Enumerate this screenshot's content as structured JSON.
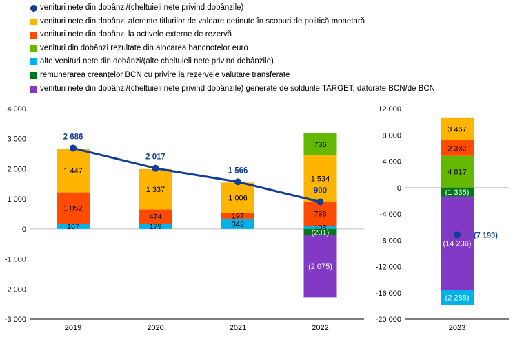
{
  "legend": [
    {
      "label": "venituri nete din dobânzi/(cheltuieli nete privind dobânzile)",
      "color": "#143e96",
      "shape": "dot"
    },
    {
      "label": "venituri nete din dobânzi aferente titlurilor de valoare deținute în scopuri de politică monetară",
      "color": "#ffb400",
      "shape": "square"
    },
    {
      "label": "venituri nete din dobânzi la activele externe de rezervă",
      "color": "#ff4b00",
      "shape": "square"
    },
    {
      "label": "venituri din dobânzi rezultate din alocarea bancnotelor euro",
      "color": "#65b800",
      "shape": "square"
    },
    {
      "label": "alte venituri nete din dobânzi/(alte cheltuieli nete privind dobânzile)",
      "color": "#00b1ea",
      "shape": "square"
    },
    {
      "label": "remunerarea creanțelor BCN cu privire la rezervele valutare transferate",
      "color": "#007816",
      "shape": "square"
    },
    {
      "label": "venituri nete din dobânzi/(cheltuieli nete privind dobânzile) generate de soldurile TARGET, datorate BCN/de BCN",
      "color": "#8139c6",
      "shape": "square"
    }
  ],
  "chart_data": [
    {
      "type": "bar",
      "stacked": true,
      "categories": [
        "2019",
        "2020",
        "2021",
        "2022"
      ],
      "ylim": [
        -3000,
        4000
      ],
      "yticks": [
        4000,
        3000,
        2000,
        1000,
        0,
        -1000,
        -2000,
        -3000
      ],
      "ytick_labels": [
        "4 000",
        "3 000",
        "2 000",
        "1 000",
        "0",
        "-1 000",
        "-2 000",
        "-3 000"
      ],
      "series": [
        {
          "key": "other",
          "color": "#00b1ea",
          "values": [
            167,
            179,
            342,
            108
          ],
          "labels": [
            "167",
            "179",
            "342",
            "108"
          ]
        },
        {
          "key": "reserves",
          "color": "#ff4b00",
          "values": [
            1052,
            474,
            197,
            798
          ],
          "labels": [
            "1 052",
            "474",
            "197",
            "798"
          ]
        },
        {
          "key": "securities",
          "color": "#ffb400",
          "values": [
            1447,
            1337,
            1006,
            1534
          ],
          "labels": [
            "1 447",
            "1 337",
            "1 006",
            "1 534"
          ]
        },
        {
          "key": "banknotes",
          "color": "#65b800",
          "values": [
            0,
            0,
            0,
            736
          ],
          "labels": [
            "",
            "",
            "",
            "736"
          ]
        },
        {
          "key": "remuneration",
          "color": "#007816",
          "values": [
            0,
            0,
            0,
            -201
          ],
          "labels": [
            "",
            "",
            "",
            "(201)"
          ]
        },
        {
          "key": "target",
          "color": "#8139c6",
          "values": [
            0,
            0,
            0,
            -2075
          ],
          "labels": [
            "",
            "",
            "",
            "(2 075)"
          ]
        }
      ],
      "line": {
        "color": "#143e96",
        "values": [
          2686,
          2017,
          1566,
          900
        ],
        "labels": [
          "2 686",
          "2 017",
          "1 566",
          "900"
        ]
      }
    },
    {
      "type": "bar",
      "stacked": true,
      "categories": [
        "2023"
      ],
      "ylim": [
        -20000,
        12000
      ],
      "yticks": [
        12000,
        8000,
        4000,
        0,
        -4000,
        -8000,
        -12000,
        -16000,
        -20000
      ],
      "ytick_labels": [
        "12 000",
        "8 000",
        "4 000",
        "0",
        "-4 000",
        "-8 000",
        "-12 000",
        "-16 000",
        "-20 000"
      ],
      "series": [
        {
          "key": "banknotes",
          "color": "#65b800",
          "values": [
            4817
          ],
          "labels": [
            "4 817"
          ]
        },
        {
          "key": "reserves",
          "color": "#ff4b00",
          "values": [
            2382
          ],
          "labels": [
            "2 382"
          ]
        },
        {
          "key": "securities",
          "color": "#ffb400",
          "values": [
            3467
          ],
          "labels": [
            "3 467"
          ]
        },
        {
          "key": "remuneration",
          "color": "#007816",
          "values": [
            -1335
          ],
          "labels": [
            "(1 335)"
          ]
        },
        {
          "key": "target",
          "color": "#8139c6",
          "values": [
            -14236
          ],
          "labels": [
            "(14 236)"
          ]
        },
        {
          "key": "other",
          "color": "#00b1ea",
          "values": [
            -2288
          ],
          "labels": [
            "(2 288)"
          ]
        }
      ],
      "line": {
        "color": "#143e96",
        "values": [
          -7193
        ],
        "labels": [
          "(7 193)"
        ]
      }
    }
  ]
}
